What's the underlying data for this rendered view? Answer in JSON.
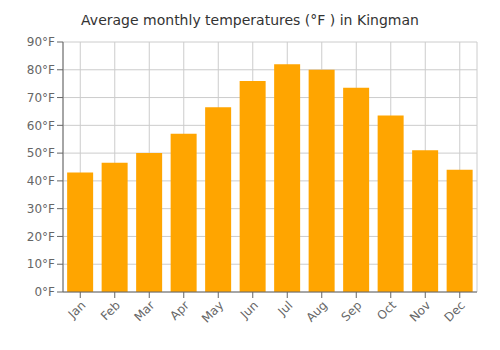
{
  "chart_data": {
    "type": "bar",
    "title": "Average monthly temperatures (°F ) in Kingman",
    "categories": [
      "Jan",
      "Feb",
      "Mar",
      "Apr",
      "May",
      "Jun",
      "Jul",
      "Aug",
      "Sep",
      "Oct",
      "Nov",
      "Dec"
    ],
    "values": [
      43,
      46.5,
      50,
      57,
      66.5,
      76,
      82,
      80,
      73.5,
      63.5,
      51,
      44
    ],
    "color": "#FFA500",
    "ylim": [
      0,
      90
    ],
    "yticks": [
      {
        "value": 0,
        "label": "0°F"
      },
      {
        "value": 10,
        "label": "10°F"
      },
      {
        "value": 20,
        "label": "20°F"
      },
      {
        "value": 30,
        "label": "30°F"
      },
      {
        "value": 40,
        "label": "40°F"
      },
      {
        "value": 50,
        "label": "50°F"
      },
      {
        "value": 60,
        "label": "60°F"
      },
      {
        "value": 70,
        "label": "70°F"
      },
      {
        "value": 80,
        "label": "80°F"
      },
      {
        "value": 90,
        "label": "90°F"
      }
    ],
    "grid": true
  }
}
